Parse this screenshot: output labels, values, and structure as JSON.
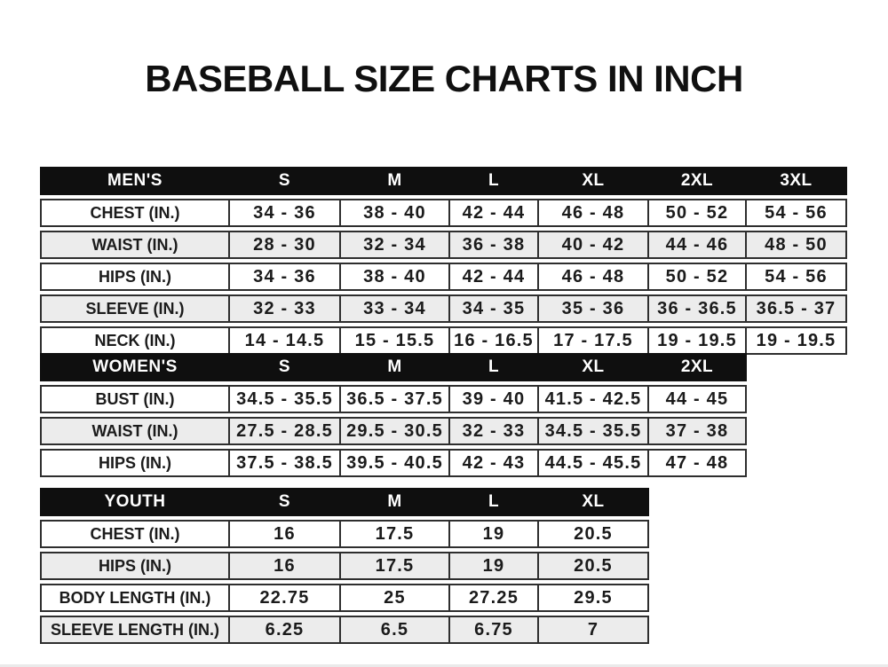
{
  "page": {
    "title": "BASEBALL SIZE CHARTS IN INCH"
  },
  "colors": {
    "page_bg": "#ffffff",
    "header_bg": "#0f0f0f",
    "header_text": "#ffffff",
    "border": "#2e2e2e",
    "row_bg": "#ffffff",
    "row_alt_bg": "#ececec",
    "text": "#1b1b1b"
  },
  "chart_data": [
    {
      "type": "table",
      "name": "mens",
      "columns": [
        "MEN'S",
        "S",
        "M",
        "L",
        "XL",
        "2XL",
        "3XL"
      ],
      "rows": [
        [
          "CHEST (IN.)",
          "34 - 36",
          "38 - 40",
          "42 - 44",
          "46 - 48",
          "50 - 52",
          "54 - 56"
        ],
        [
          "WAIST (IN.)",
          "28 - 30",
          "32 - 34",
          "36 - 38",
          "40 - 42",
          "44 - 46",
          "48 - 50"
        ],
        [
          "HIPS (IN.)",
          "34 - 36",
          "38 - 40",
          "42 - 44",
          "46 - 48",
          "50 - 52",
          "54 - 56"
        ],
        [
          "SLEEVE (IN.)",
          "32 - 33",
          "33 - 34",
          "34 - 35",
          "35 - 36",
          "36 - 36.5",
          "36.5 - 37"
        ],
        [
          "NECK (IN.)",
          "14 - 14.5",
          "15 - 15.5",
          "16 - 16.5",
          "17 - 17.5",
          "19 - 19.5",
          "19 - 19.5"
        ]
      ]
    },
    {
      "type": "table",
      "name": "womens",
      "columns": [
        "WOMEN'S",
        "S",
        "M",
        "L",
        "XL",
        "2XL"
      ],
      "rows": [
        [
          "BUST (IN.)",
          "34.5 - 35.5",
          "36.5 - 37.5",
          "39 - 40",
          "41.5 - 42.5",
          "44 - 45"
        ],
        [
          "WAIST (IN.)",
          "27.5 - 28.5",
          "29.5 - 30.5",
          "32 - 33",
          "34.5 - 35.5",
          "37 - 38"
        ],
        [
          "HIPS (IN.)",
          "37.5 - 38.5",
          "39.5 - 40.5",
          "42 - 43",
          "44.5 - 45.5",
          "47 - 48"
        ]
      ]
    },
    {
      "type": "table",
      "name": "youth",
      "columns": [
        "YOUTH",
        "S",
        "M",
        "L",
        "XL"
      ],
      "rows": [
        [
          "CHEST (IN.)",
          "16",
          "17.5",
          "19",
          "20.5"
        ],
        [
          "HIPS (IN.)",
          "16",
          "17.5",
          "19",
          "20.5"
        ],
        [
          "BODY LENGTH (IN.)",
          "22.75",
          "25",
          "27.25",
          "29.5"
        ],
        [
          "SLEEVE LENGTH (IN.)",
          "6.25",
          "6.5",
          "6.75",
          "7"
        ]
      ]
    }
  ]
}
